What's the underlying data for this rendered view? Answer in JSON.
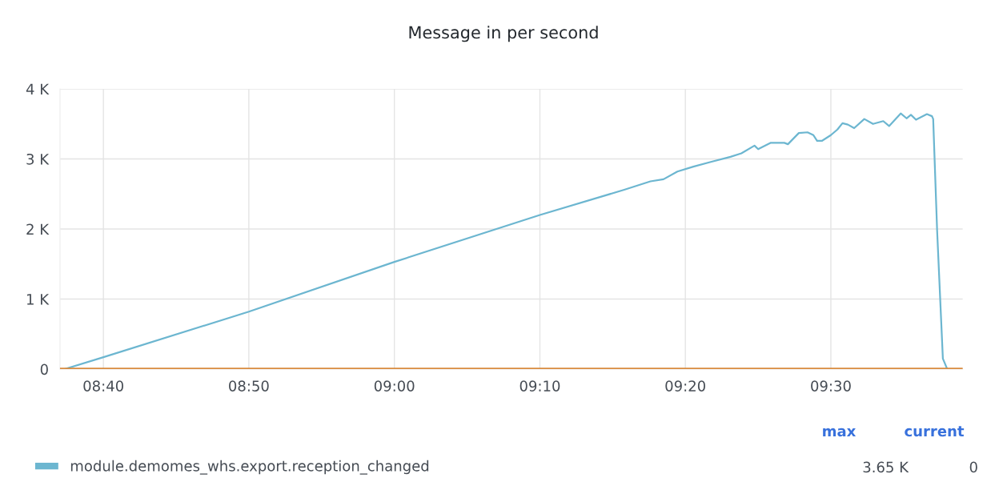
{
  "chart_data": {
    "type": "line",
    "title": "Message in per second",
    "xlim": [
      8.617,
      9.651
    ],
    "xticks": [
      {
        "value": 8.6667,
        "label": "08:40"
      },
      {
        "value": 8.8333,
        "label": "08:50"
      },
      {
        "value": 9.0,
        "label": "09:00"
      },
      {
        "value": 9.1667,
        "label": "09:10"
      },
      {
        "value": 9.3333,
        "label": "09:20"
      },
      {
        "value": 9.5,
        "label": "09:30"
      }
    ],
    "ylim": [
      0,
      4000
    ],
    "yticks": [
      0,
      {
        "value": 1000,
        "label": "1 K"
      },
      {
        "value": 2000,
        "label": "2 K"
      },
      {
        "value": 3000,
        "label": "3 K"
      },
      {
        "value": 4000,
        "label": "4 K"
      }
    ],
    "grid": true,
    "legend": "bottom",
    "marker": "none",
    "line_style": "solid",
    "series": [
      {
        "name": "module.demomes_whs.export.reception_changed",
        "color": "#6cb6d0",
        "x": [
          8.6222,
          8.6667,
          8.8333,
          9.0,
          9.1667,
          9.2633,
          9.2933,
          9.3083,
          9.3242,
          9.3425,
          9.3633,
          9.385,
          9.3975,
          9.4125,
          9.4167,
          9.4308,
          9.4467,
          9.4508,
          9.4633,
          9.4733,
          9.48,
          9.4842,
          9.49,
          9.5,
          9.5075,
          9.5133,
          9.5195,
          9.5267,
          9.5383,
          9.5483,
          9.56,
          9.5667,
          9.58,
          9.5867,
          9.5917,
          9.5975,
          9.61,
          9.6158,
          9.6172,
          9.6217,
          9.6283,
          9.6333
        ],
        "values": [
          0,
          170,
          820,
          1530,
          2200,
          2560,
          2680,
          2710,
          2820,
          2890,
          2960,
          3030,
          3080,
          3190,
          3140,
          3230,
          3230,
          3210,
          3370,
          3380,
          3340,
          3260,
          3260,
          3340,
          3420,
          3510,
          3490,
          3440,
          3570,
          3500,
          3540,
          3470,
          3650,
          3580,
          3630,
          3560,
          3640,
          3610,
          3570,
          1980,
          150,
          0
        ]
      },
      {
        "color": "#d98b3f",
        "x": [
          8.617,
          9.651
        ],
        "values": [
          0,
          0
        ]
      }
    ],
    "annotations": [
      "max",
      "current",
      "3.65 K",
      "0"
    ]
  }
}
